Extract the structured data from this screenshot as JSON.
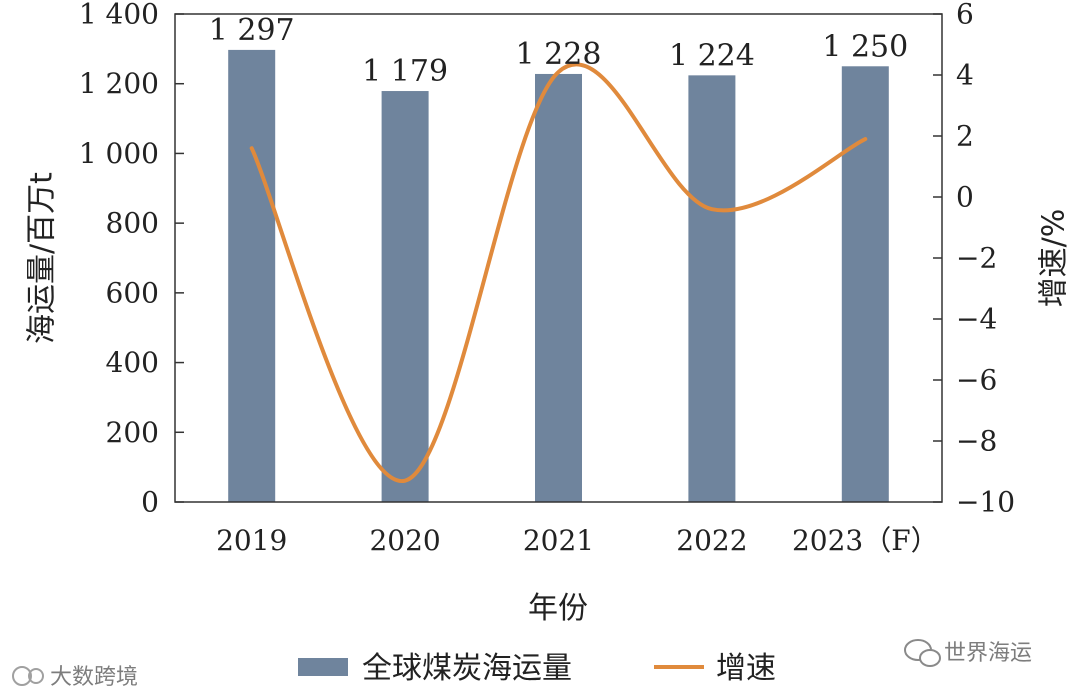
{
  "chart_data": {
    "type": "bar",
    "categories": [
      "2019",
      "2020",
      "2021",
      "2022",
      "2023（F）"
    ],
    "series": [
      {
        "name": "全球煤炭海运量",
        "type": "bar",
        "axis": "left",
        "values": [
          1297,
          1179,
          1228,
          1224,
          1250
        ],
        "labels": [
          "1 297",
          "1 179",
          "1 228",
          "1 224",
          "1 250"
        ],
        "color": "#6f849d"
      },
      {
        "name": "增速",
        "type": "line",
        "axis": "right",
        "values": [
          1.6,
          -9.3,
          4.1,
          -0.4,
          1.9
        ],
        "color": "#e08a3c"
      }
    ],
    "xlabel": "年份",
    "ylabel": "海运量/百万t",
    "y2label": "增速/%",
    "ylim": [
      0,
      1400
    ],
    "y2lim": [
      -10,
      6
    ],
    "yticks": [
      0,
      200,
      400,
      600,
      800,
      1000,
      1200,
      1400
    ],
    "ytick_labels": [
      "0",
      "200",
      "400",
      "600",
      "800",
      "1 000",
      "1 200",
      "1 400"
    ],
    "y2ticks": [
      -10,
      -8,
      -6,
      -4,
      -2,
      0,
      2,
      4,
      6
    ],
    "y2tick_labels": [
      "−10",
      "−8",
      "−6",
      "−4",
      "−2",
      "0",
      "2",
      "4",
      "6"
    ],
    "legend_position": "bottom-center",
    "grid": false
  },
  "watermarks": {
    "left": "大数跨境",
    "right": "世界海运"
  }
}
